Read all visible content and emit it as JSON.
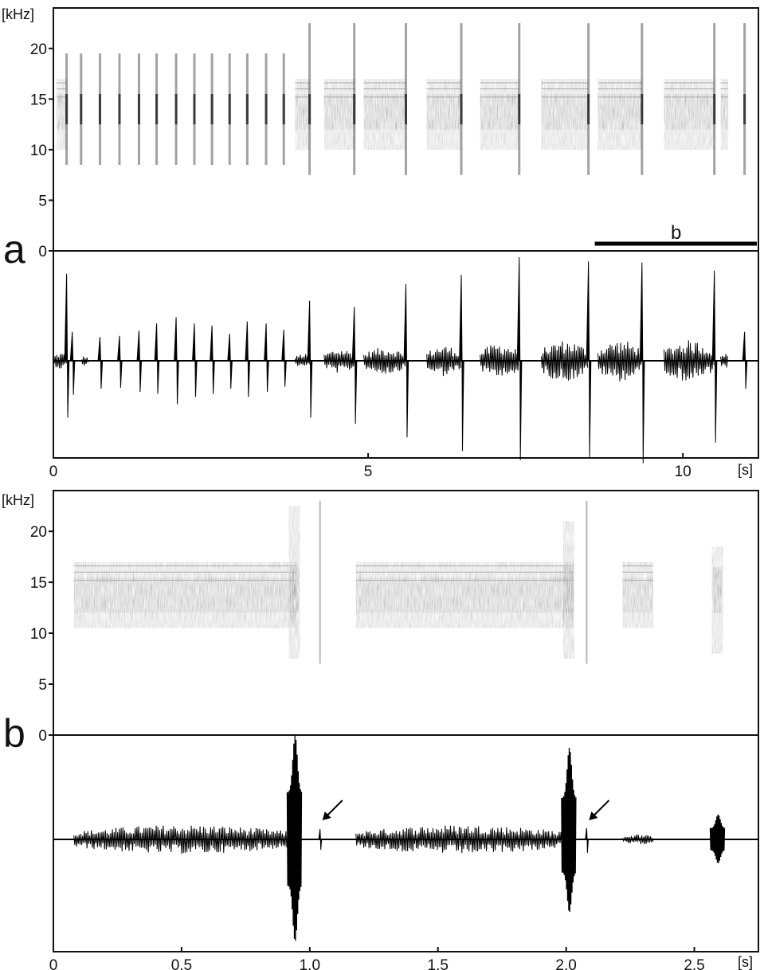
{
  "figure": {
    "panel_a_label": "a",
    "panel_b_label": "b",
    "scale_bar_label": "b"
  },
  "chart_data": [
    {
      "type": "spectrogram",
      "panel": "a",
      "ylabel": "[kHz]",
      "yticks": [
        "0",
        "5",
        "10",
        "15",
        "20"
      ],
      "ylim": [
        0,
        24
      ],
      "xlim": [
        0,
        11.2
      ],
      "grid": false,
      "band_khz": [
        10,
        17
      ],
      "segments": [
        {
          "start": 0.05,
          "end": 0.22
        },
        {
          "start": 3.84,
          "end": 4.08
        },
        {
          "start": 4.3,
          "end": 4.8
        },
        {
          "start": 4.93,
          "end": 5.6
        },
        {
          "start": 5.93,
          "end": 6.48
        },
        {
          "start": 6.78,
          "end": 7.4
        },
        {
          "start": 7.75,
          "end": 8.5
        },
        {
          "start": 8.65,
          "end": 9.35
        },
        {
          "start": 9.7,
          "end": 10.5
        },
        {
          "start": 10.6,
          "end": 10.72
        }
      ],
      "clicks": [
        0.21,
        0.44,
        0.74,
        1.05,
        1.36,
        1.64,
        1.95,
        2.24,
        2.52,
        2.8,
        3.08,
        3.38,
        3.66,
        4.07,
        4.78,
        5.6,
        6.48,
        7.4,
        8.5,
        9.35,
        10.5,
        10.98
      ],
      "scale_bar": {
        "start": 8.6,
        "end": 11.2
      }
    },
    {
      "type": "line",
      "panel": "a",
      "xlabel": "[s]",
      "xticks": [
        "0",
        "5",
        "10"
      ],
      "xtick_values": [
        0,
        5,
        10
      ],
      "xlim": [
        0,
        11.2
      ],
      "segments": [
        {
          "start": 0.0,
          "end": 0.22,
          "amp": 0.08
        },
        {
          "start": 0.45,
          "end": 0.55,
          "amp": 0.05
        },
        {
          "start": 3.84,
          "end": 4.08,
          "amp": 0.07
        },
        {
          "start": 4.3,
          "end": 4.8,
          "amp": 0.12
        },
        {
          "start": 4.93,
          "end": 5.6,
          "amp": 0.13
        },
        {
          "start": 5.93,
          "end": 6.48,
          "amp": 0.15
        },
        {
          "start": 6.78,
          "end": 7.4,
          "amp": 0.17
        },
        {
          "start": 7.75,
          "end": 8.5,
          "amp": 0.2
        },
        {
          "start": 8.65,
          "end": 9.35,
          "amp": 0.2
        },
        {
          "start": 9.7,
          "end": 10.5,
          "amp": 0.2
        },
        {
          "start": 10.6,
          "end": 10.72,
          "amp": 0.09
        }
      ],
      "clicks": [
        {
          "x": 0.21,
          "up": 0.84,
          "down": 0.55
        },
        {
          "x": 0.3,
          "up": 0.28,
          "down": 0.33
        },
        {
          "x": 0.74,
          "up": 0.23,
          "down": 0.27
        },
        {
          "x": 1.05,
          "up": 0.24,
          "down": 0.26
        },
        {
          "x": 1.36,
          "up": 0.29,
          "down": 0.3
        },
        {
          "x": 1.64,
          "up": 0.36,
          "down": 0.32
        },
        {
          "x": 1.95,
          "up": 0.42,
          "down": 0.42
        },
        {
          "x": 2.24,
          "up": 0.36,
          "down": 0.35
        },
        {
          "x": 2.52,
          "up": 0.34,
          "down": 0.32
        },
        {
          "x": 2.8,
          "up": 0.26,
          "down": 0.27
        },
        {
          "x": 3.08,
          "up": 0.38,
          "down": 0.35
        },
        {
          "x": 3.38,
          "up": 0.36,
          "down": 0.3
        },
        {
          "x": 3.66,
          "up": 0.3,
          "down": 0.25
        },
        {
          "x": 4.07,
          "up": 0.58,
          "down": 0.55
        },
        {
          "x": 4.78,
          "up": 0.52,
          "down": 0.61
        },
        {
          "x": 5.6,
          "up": 0.74,
          "down": 0.74
        },
        {
          "x": 6.48,
          "up": 0.83,
          "down": 0.87
        },
        {
          "x": 7.4,
          "up": 1.0,
          "down": 0.96
        },
        {
          "x": 8.5,
          "up": 0.96,
          "down": 0.93
        },
        {
          "x": 9.35,
          "up": 0.95,
          "down": 0.99
        },
        {
          "x": 10.5,
          "up": 0.87,
          "down": 0.79
        },
        {
          "x": 10.98,
          "up": 0.28,
          "down": 0.27
        }
      ]
    },
    {
      "type": "spectrogram",
      "panel": "b",
      "ylabel": "[kHz]",
      "yticks": [
        "0",
        "5",
        "10",
        "15",
        "20"
      ],
      "ylim": [
        0,
        24
      ],
      "xlim": [
        0,
        2.75
      ],
      "grid": false,
      "band_khz": [
        10.5,
        17
      ],
      "segments": [
        {
          "start": 0.08,
          "end": 0.95
        },
        {
          "start": 1.18,
          "end": 2.03
        },
        {
          "start": 2.22,
          "end": 2.34
        }
      ],
      "bursts": [
        {
          "x": 0.94,
          "low": 7.5,
          "high": 22.5
        },
        {
          "x": 2.01,
          "low": 7.5,
          "high": 21
        },
        {
          "x": 2.59,
          "low": 8,
          "high": 18.5
        }
      ],
      "clicks": [
        1.04,
        2.08
      ]
    },
    {
      "type": "line",
      "panel": "b",
      "xlabel": "[s]",
      "xticks": [
        "0",
        "0.5",
        "1.0",
        "1.5",
        "2.0",
        "2.5"
      ],
      "xtick_values": [
        0,
        0.5,
        1.0,
        1.5,
        2.0,
        2.5
      ],
      "xlim": [
        0,
        2.75
      ],
      "segments": [
        {
          "start": 0.08,
          "end": 0.93,
          "amp": 0.14
        },
        {
          "start": 1.18,
          "end": 2.0,
          "amp": 0.14
        },
        {
          "start": 2.22,
          "end": 2.34,
          "amp": 0.05
        }
      ],
      "bursts": [
        {
          "x": 0.94,
          "up": 1.0,
          "down": 0.98
        },
        {
          "x": 2.01,
          "up": 0.88,
          "down": 0.7
        },
        {
          "x": 2.59,
          "up": 0.24,
          "down": 0.23
        }
      ],
      "clicks": [
        {
          "x": 1.04,
          "up": 0.1,
          "down": 0.1
        },
        {
          "x": 2.08,
          "up": 0.11,
          "down": 0.13
        }
      ],
      "arrows": [
        1.04,
        2.08
      ]
    }
  ]
}
